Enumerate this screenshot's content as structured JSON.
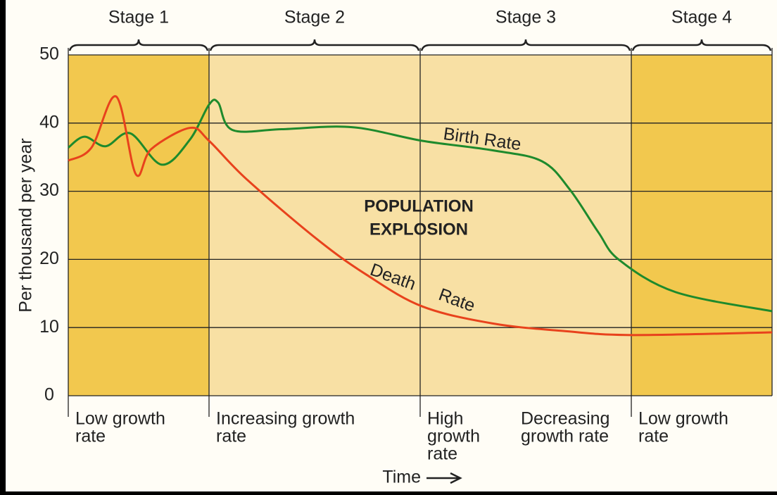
{
  "chart_data": {
    "type": "line",
    "ylabel": "Per thousand per year",
    "xlabel": "Time",
    "ylim": [
      0,
      50
    ],
    "yticks": [
      0,
      10,
      20,
      30,
      40,
      50
    ],
    "xlim": [
      0,
      10
    ],
    "grid": true,
    "stages": [
      {
        "label": "Stage 1",
        "bounds": [
          0,
          2
        ],
        "color": "#f2c84e",
        "notes": [
          [
            "Low growth",
            "rate"
          ]
        ]
      },
      {
        "label": "Stage 2",
        "bounds": [
          2,
          5
        ],
        "color": "#f8e0a4",
        "notes": [
          [
            "Increasing growth",
            "rate"
          ]
        ]
      },
      {
        "label": "Stage 3",
        "bounds": [
          5,
          8
        ],
        "color": "#f8e0a4",
        "notes": [
          [
            "High",
            "growth",
            "rate"
          ],
          [
            "Decreasing",
            "growth rate"
          ]
        ]
      },
      {
        "label": "Stage 4",
        "bounds": [
          8,
          10
        ],
        "color": "#f2c84e",
        "notes": [
          [
            "Low growth",
            "rate"
          ]
        ]
      }
    ],
    "annotation": [
      "POPULATION",
      "EXPLOSION"
    ],
    "series": [
      {
        "name": "Birth Rate",
        "color": "#1e8a2c",
        "x": [
          0,
          0.23,
          0.53,
          0.88,
          1.33,
          1.73,
          2.0,
          2.13,
          2.33,
          3.03,
          4.03,
          5.03,
          6.03,
          6.73,
          7.13,
          7.53,
          7.83,
          8.63,
          10
        ],
        "values": [
          36.4,
          38,
          36.6,
          38.5,
          33.9,
          37.6,
          42.7,
          43,
          39,
          39.1,
          39.4,
          37.4,
          36,
          34.4,
          30.2,
          24,
          19.9,
          15.2,
          12.4
        ]
      },
      {
        "name": "Death Rate",
        "color": "#e8421c",
        "x": [
          0,
          0.33,
          0.68,
          0.96,
          1.18,
          1.73,
          2.0,
          2.53,
          3.53,
          4.23,
          5.03,
          6.03,
          7.03,
          8.0,
          10
        ],
        "values": [
          34.5,
          36.4,
          43.9,
          32.5,
          36.2,
          39.3,
          37.4,
          31.8,
          23,
          17.8,
          13.1,
          10.6,
          9.5,
          8.9,
          9.3
        ]
      }
    ]
  }
}
